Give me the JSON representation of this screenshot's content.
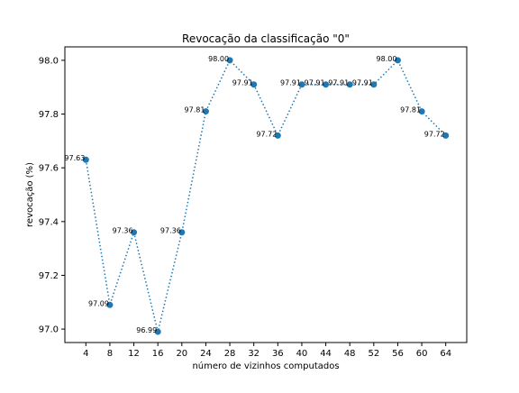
{
  "chart_data": {
    "type": "line",
    "title": "Revocação da classificação \"0\"",
    "xlabel": "número de vizinhos computados",
    "ylabel": "revocação (%)",
    "x": [
      4,
      8,
      12,
      16,
      20,
      24,
      28,
      32,
      36,
      40,
      44,
      48,
      52,
      56,
      60,
      64
    ],
    "x_ticks": [
      "4",
      "8",
      "12",
      "16",
      "20",
      "24",
      "28",
      "32",
      "36",
      "40",
      "44",
      "48",
      "52",
      "56",
      "60",
      "64"
    ],
    "y_ticks": [
      "97.0",
      "97.2",
      "97.4",
      "97.6",
      "97.8",
      "98.0"
    ],
    "y_tick_values": [
      97.0,
      97.2,
      97.4,
      97.6,
      97.8,
      98.0
    ],
    "xlim": [
      0.5,
      67.5
    ],
    "ylim": [
      96.95,
      98.05
    ],
    "grid": false,
    "line_style": "dotted",
    "marker": "circle",
    "series": [
      {
        "color": "#1f77b4",
        "values": [
          97.63,
          97.09,
          97.36,
          96.99,
          97.36,
          97.81,
          98.0,
          97.91,
          97.72,
          97.91,
          97.91,
          97.91,
          97.91,
          98.0,
          97.81,
          97.72
        ],
        "labels": [
          "97.63",
          "97.09",
          "97.36",
          "96.99",
          "97.36",
          "97.81",
          "98.00",
          "97.91",
          "97.72",
          "97.91",
          "97.91",
          "97.91",
          "97.91",
          "98.00",
          "97.81",
          "97.72"
        ]
      }
    ]
  }
}
